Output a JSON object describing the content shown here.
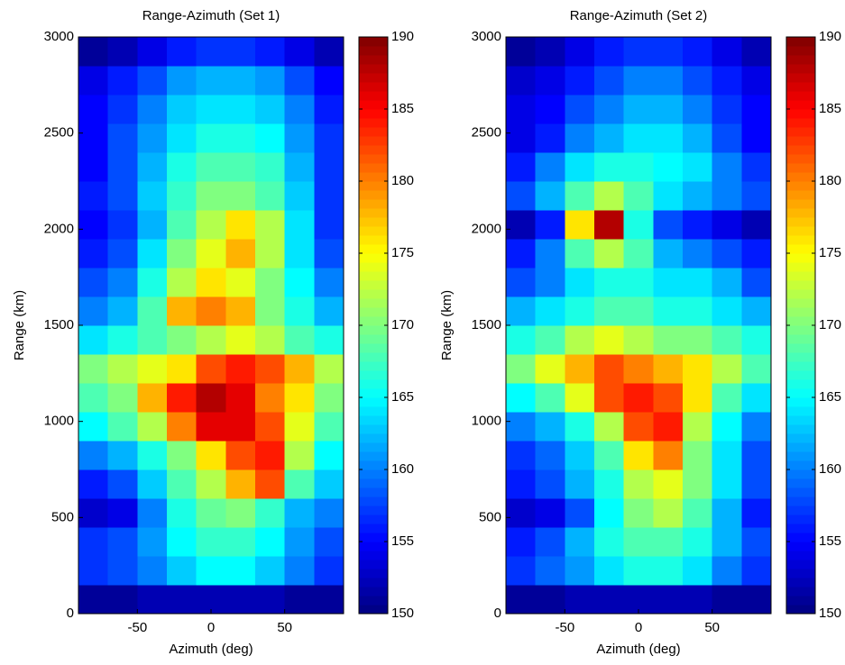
{
  "chart_data": [
    {
      "type": "heatmap",
      "title": "Range-Azimuth (Set 1)",
      "xlabel": "Azimuth (deg)",
      "ylabel": "Range (km)",
      "xlim": [
        -90,
        90
      ],
      "ylim": [
        0,
        3000
      ],
      "xticks": [
        -50,
        0,
        50
      ],
      "yticks": [
        0,
        500,
        1000,
        1500,
        2000,
        2500,
        3000
      ],
      "xbins": [
        -90,
        -70,
        -50,
        -30,
        -10,
        10,
        30,
        50,
        70,
        90
      ],
      "ybins": [
        0,
        150,
        300,
        450,
        600,
        750,
        900,
        1050,
        1200,
        1350,
        1500,
        1650,
        1800,
        1950,
        2100,
        2250,
        2400,
        2550,
        2700,
        2850,
        3000
      ],
      "z": [
        [
          151,
          151,
          152,
          152,
          152,
          152,
          152,
          151,
          151
        ],
        [
          157,
          158,
          160,
          163,
          165,
          165,
          163,
          160,
          157
        ],
        [
          157,
          158,
          161,
          165,
          167,
          167,
          165,
          161,
          158
        ],
        [
          153,
          154,
          160,
          166,
          169,
          170,
          167,
          162,
          160
        ],
        [
          156,
          158,
          163,
          168,
          172,
          178,
          182,
          168,
          163
        ],
        [
          160,
          162,
          166,
          170,
          176,
          182,
          184,
          172,
          165
        ],
        [
          165,
          168,
          172,
          180,
          186,
          186,
          182,
          174,
          168
        ],
        [
          168,
          170,
          178,
          184,
          188,
          186,
          180,
          176,
          170
        ],
        [
          170,
          172,
          174,
          176,
          182,
          184,
          182,
          178,
          172
        ],
        [
          164,
          166,
          168,
          170,
          172,
          174,
          172,
          168,
          166
        ],
        [
          160,
          162,
          168,
          178,
          180,
          178,
          170,
          166,
          162
        ],
        [
          158,
          160,
          166,
          172,
          176,
          174,
          170,
          165,
          160
        ],
        [
          156,
          158,
          164,
          170,
          174,
          178,
          172,
          164,
          158
        ],
        [
          155,
          157,
          162,
          168,
          172,
          176,
          172,
          164,
          157
        ],
        [
          156,
          158,
          163,
          167,
          170,
          170,
          168,
          163,
          157
        ],
        [
          155,
          158,
          162,
          166,
          168,
          168,
          167,
          162,
          157
        ],
        [
          155,
          158,
          161,
          164,
          166,
          166,
          165,
          161,
          157
        ],
        [
          155,
          157,
          160,
          163,
          164,
          164,
          163,
          160,
          156
        ],
        [
          154,
          156,
          158,
          161,
          162,
          162,
          161,
          158,
          155
        ],
        [
          151,
          152,
          154,
          156,
          157,
          157,
          156,
          154,
          152
        ]
      ],
      "colormap": "jet",
      "clim": [
        150,
        190
      ],
      "cticks": [
        150,
        155,
        160,
        165,
        170,
        175,
        180,
        185,
        190
      ]
    },
    {
      "type": "heatmap",
      "title": "Range-Azimuth (Set 2)",
      "xlabel": "Azimuth (deg)",
      "ylabel": "Range (km)",
      "xlim": [
        -90,
        90
      ],
      "ylim": [
        0,
        3000
      ],
      "xticks": [
        -50,
        0,
        50
      ],
      "yticks": [
        0,
        500,
        1000,
        1500,
        2000,
        2500,
        3000
      ],
      "xbins": [
        -90,
        -70,
        -50,
        -30,
        -10,
        10,
        30,
        50,
        70,
        90
      ],
      "ybins": [
        0,
        150,
        300,
        450,
        600,
        750,
        900,
        1050,
        1200,
        1350,
        1500,
        1650,
        1800,
        1950,
        2100,
        2250,
        2400,
        2550,
        2700,
        2850,
        3000
      ],
      "z": [
        [
          151,
          151,
          152,
          152,
          152,
          152,
          152,
          151,
          151
        ],
        [
          157,
          159,
          161,
          164,
          166,
          166,
          164,
          160,
          157
        ],
        [
          156,
          158,
          162,
          166,
          168,
          168,
          166,
          162,
          158
        ],
        [
          153,
          154,
          158,
          165,
          170,
          172,
          168,
          162,
          156
        ],
        [
          156,
          158,
          162,
          166,
          172,
          174,
          170,
          164,
          158
        ],
        [
          157,
          159,
          163,
          168,
          176,
          180,
          170,
          164,
          158
        ],
        [
          160,
          162,
          166,
          172,
          182,
          184,
          172,
          165,
          160
        ],
        [
          165,
          168,
          174,
          182,
          184,
          182,
          176,
          168,
          164
        ],
        [
          170,
          174,
          178,
          182,
          180,
          178,
          176,
          172,
          168
        ],
        [
          166,
          168,
          172,
          174,
          172,
          170,
          170,
          168,
          166
        ],
        [
          162,
          164,
          166,
          168,
          168,
          166,
          166,
          164,
          162
        ],
        [
          158,
          160,
          164,
          166,
          166,
          164,
          164,
          162,
          158
        ],
        [
          156,
          160,
          168,
          172,
          168,
          162,
          160,
          158,
          156
        ],
        [
          152,
          156,
          176,
          188,
          166,
          158,
          156,
          154,
          152
        ],
        [
          158,
          162,
          168,
          172,
          168,
          164,
          162,
          160,
          158
        ],
        [
          156,
          160,
          164,
          166,
          166,
          165,
          164,
          160,
          157
        ],
        [
          154,
          156,
          160,
          162,
          164,
          164,
          162,
          158,
          155
        ],
        [
          154,
          155,
          158,
          160,
          162,
          162,
          160,
          157,
          155
        ],
        [
          153,
          154,
          156,
          158,
          160,
          160,
          158,
          156,
          154
        ],
        [
          151,
          152,
          154,
          156,
          157,
          157,
          156,
          154,
          152
        ]
      ],
      "colormap": "jet",
      "clim": [
        150,
        190
      ],
      "cticks": [
        150,
        155,
        160,
        165,
        170,
        175,
        180,
        185,
        190
      ]
    }
  ]
}
